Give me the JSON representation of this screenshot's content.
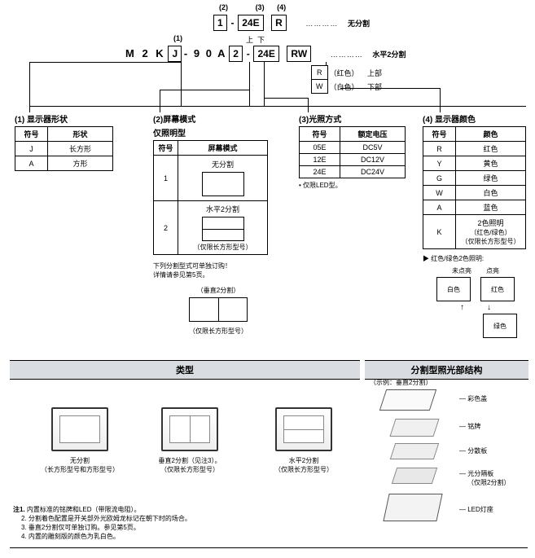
{
  "top": {
    "nums_row1": {
      "n2": "(2)",
      "n3": "(3)",
      "n4": "(4)"
    },
    "row1": {
      "b1": "1",
      "dash": "-",
      "b2": "24E",
      "b3": "R",
      "dots": "…………",
      "lbl": "无分割"
    },
    "num1": "(1)",
    "row2": {
      "pfx": "M 2 K",
      "bJ": "J",
      "mid": "- 9 0 A",
      "b2": "2",
      "dash": "-",
      "b24": "24E",
      "bRW": "RW",
      "dots": "…………",
      "lbl": "水平2分割"
    },
    "legend": {
      "R": "R",
      "Rtxt": "（红色）",
      "Rpos": "上部",
      "W": "W",
      "Wtxt": "（白色）",
      "Wpos": "下部"
    },
    "up": "上",
    "down": "下"
  },
  "t1": {
    "title": "(1) 显示器形状",
    "h1": "符号",
    "h2": "形状",
    "r1c1": "J",
    "r1c2": "长方形",
    "r2c1": "A",
    "r2c2": "方形"
  },
  "t2": {
    "title": "(2)屏幕模式",
    "sub": "仅照明型",
    "h1": "符号",
    "h2": "屏幕模式",
    "r1c1": "1",
    "r1c2": "无分割",
    "r2c1": "2",
    "r2c2a": "水平2分割",
    "r2c2b": "（仅限长方形型号）",
    "note1": "下列分割型式可单独订购！",
    "note2": "详情请参见第5页。",
    "extra_lbl": "（垂直2分割）",
    "extra_lbl2": "（仅限长方形型号）"
  },
  "t3": {
    "title": "(3)光照方式",
    "h1": "符号",
    "h2": "额定电压",
    "r1c1": "05E",
    "r1c2": "DC5V",
    "r2c1": "12E",
    "r2c2": "DC12V",
    "r3c1": "24E",
    "r3c2": "DC24V",
    "note": "• 仅限LED型。"
  },
  "t4": {
    "title": "(4) 显示器颜色",
    "h1": "符号",
    "h2": "颜色",
    "rows": [
      {
        "s": "R",
        "c": "红色"
      },
      {
        "s": "Y",
        "c": "黄色"
      },
      {
        "s": "G",
        "c": "绿色"
      },
      {
        "s": "W",
        "c": "白色"
      },
      {
        "s": "A",
        "c": "蓝色"
      }
    ],
    "krow": {
      "s": "K",
      "c1": "2色照明",
      "c2": "（红色/绿色）",
      "c3": "（仅限长方形型号）"
    },
    "diag_title": "红色/绿色2色照明:",
    "unlit": "未点亮",
    "lit": "点亮",
    "white": "白色",
    "red": "红色",
    "green": "绿色"
  },
  "bottom": {
    "band_l": "类型",
    "band_r": "分割型照光部结构",
    "example": "（示例：垂直2分割）",
    "p1": "无分割",
    "p1s": "（长方形型号和方形型号）",
    "p2": "垂直2分割（见注3）。",
    "p2s": "（仅限长方形型号）",
    "p3": "水平2分割",
    "p3s": "（仅限长方形型号）",
    "cbl1": "彩色盖",
    "cbl2": "铭牌",
    "cbl3": "分散板",
    "cbl4": "光分隔板",
    "cbl4s": "（仅限2分割）",
    "cbl5": "LED灯座",
    "notes_h": "注1. ",
    "n1": "内置标准的铭牌和LED（带限流电阻）。",
    "n2": "2. 分割着色配置是开关部外光欧姆龙标记在朝下时的场合。",
    "n3": "3. 垂直2分割仅可单独订购。参见第5页。",
    "n4": "4. 内置的雕刻版的颜色为乳白色。"
  },
  "colors": {
    "band": "#d9dde2"
  }
}
